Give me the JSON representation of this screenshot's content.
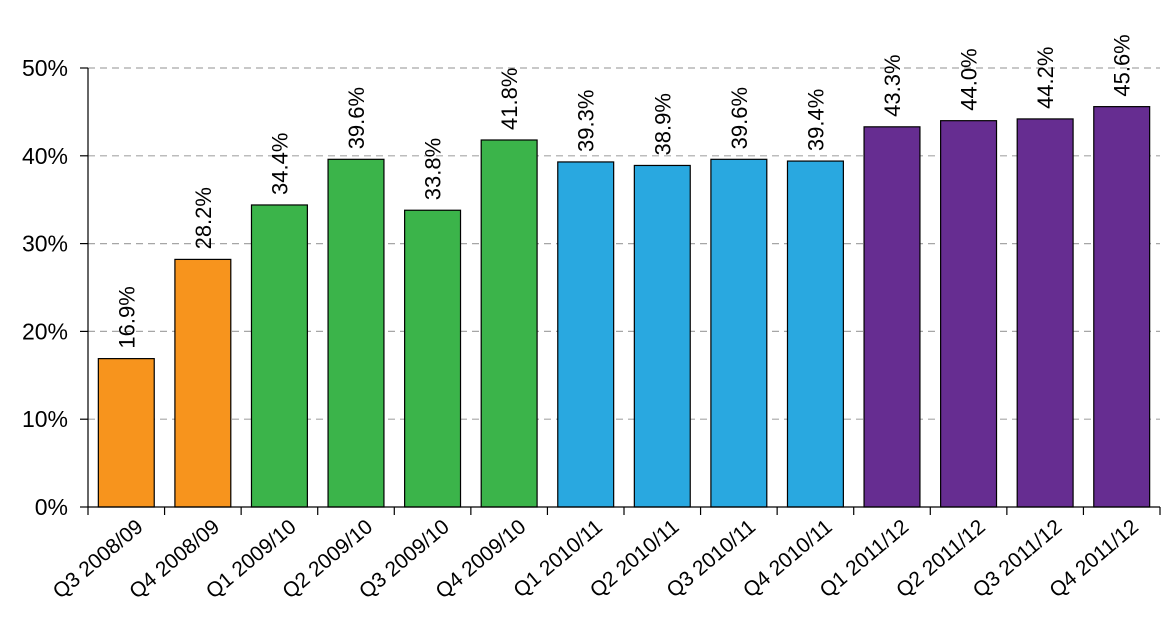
{
  "chart_data": {
    "type": "bar",
    "categories": [
      "Q3 2008/09",
      "Q4 2008/09",
      "Q1 2009/10",
      "Q2 2009/10",
      "Q3 2009/10",
      "Q4 2009/10",
      "Q1 2010/11",
      "Q2 2010/11",
      "Q3 2010/11",
      "Q4 2010/11",
      "Q1 2011/12",
      "Q2 2011/12",
      "Q3 2011/12",
      "Q4 2011/12"
    ],
    "values": [
      16.9,
      28.2,
      34.4,
      39.6,
      33.8,
      41.8,
      39.3,
      38.9,
      39.6,
      39.4,
      43.3,
      44.0,
      44.2,
      45.6
    ],
    "data_labels": [
      "16.9%",
      "28.2%",
      "34.4%",
      "39.6%",
      "33.8%",
      "41.8%",
      "39.3%",
      "38.9%",
      "39.6%",
      "39.4%",
      "43.3%",
      "44.0%",
      "44.2%",
      "45.6%"
    ],
    "bar_colors": [
      "#f7941d",
      "#f7941d",
      "#3bb44a",
      "#3bb44a",
      "#3bb44a",
      "#3bb44a",
      "#29a8e0",
      "#29a8e0",
      "#29a8e0",
      "#29a8e0",
      "#662d91",
      "#662d91",
      "#662d91",
      "#662d91"
    ],
    "title": "",
    "xlabel": "",
    "ylabel": "",
    "ylim": [
      0,
      50
    ],
    "yticks": [
      0,
      10,
      20,
      30,
      40,
      50
    ],
    "ytick_labels": [
      "0%",
      "10%",
      "20%",
      "30%",
      "40%",
      "50%"
    ],
    "grid": true,
    "legend": "none"
  }
}
